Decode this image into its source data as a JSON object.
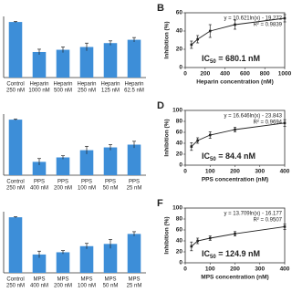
{
  "chart_data": [
    {
      "type": "bar",
      "color": "#3d8ed8",
      "ylim": [
        0,
        110
      ],
      "categories": [
        [
          "Control",
          "250 nM"
        ],
        [
          "Heparin",
          "1000 nM"
        ],
        [
          "Heparin",
          "500 nM"
        ],
        [
          "Heparin",
          "250 nM"
        ],
        [
          "Heparin",
          "125 nM"
        ],
        [
          "Heparin",
          "62.5 nM"
        ]
      ],
      "values": [
        100,
        46,
        50,
        55,
        62,
        68
      ],
      "errors": [
        1,
        5,
        5,
        7,
        4,
        4
      ]
    },
    {
      "type": "scatter",
      "panel_label": "B",
      "xlabel": "Heparin concentration (nM)",
      "ylabel": "Inhibition (%)",
      "x": [
        62.5,
        125,
        250,
        500,
        1000
      ],
      "values": [
        25,
        31,
        40,
        47,
        54
      ],
      "errors": [
        4,
        4,
        7,
        5,
        4
      ],
      "xlim": [
        0,
        1000
      ],
      "ylim": [
        0,
        60
      ],
      "xticks": [
        0,
        200,
        400,
        600,
        800,
        1000
      ],
      "yticks": [
        0,
        20,
        40,
        60
      ],
      "equation": "y = 10.621ln(x) - 19.272",
      "r_squared": "R² = 0.9839",
      "ic50": [
        "IC",
        "50",
        " = 680.1 nM"
      ]
    },
    {
      "type": "bar",
      "color": "#3d8ed8",
      "ylim": [
        0,
        110
      ],
      "categories": [
        [
          "Control",
          "250 nM"
        ],
        [
          "PPS",
          "400 nM"
        ],
        [
          "PPS",
          "200 nM"
        ],
        [
          "PPS",
          "100 nM"
        ],
        [
          "PPS",
          "50 nM"
        ],
        [
          "PPS",
          "25 nM"
        ]
      ],
      "values": [
        100,
        24,
        32,
        45,
        50,
        55
      ],
      "errors": [
        1,
        6,
        3,
        7,
        5,
        6
      ]
    },
    {
      "type": "scatter",
      "panel_label": "D",
      "xlabel": "PPS concentration (nM)",
      "ylabel": "Inhibition (%)",
      "x": [
        25,
        50,
        100,
        200,
        400
      ],
      "values": [
        34,
        45,
        55,
        65,
        77
      ],
      "errors": [
        7,
        5,
        6,
        4,
        6
      ],
      "xlim": [
        0,
        400
      ],
      "ylim": [
        0,
        100
      ],
      "xticks": [
        0,
        100,
        200,
        300,
        400
      ],
      "yticks": [
        0,
        20,
        40,
        60,
        80,
        100
      ],
      "equation": "y = 16.646ln(x) - 23.843",
      "r_squared": "R² = 0.9694",
      "ic50": [
        "IC",
        "50",
        " = 84.4 nM"
      ]
    },
    {
      "type": "bar",
      "color": "#3d8ed8",
      "ylim": [
        0,
        110
      ],
      "categories": [
        [
          "Control",
          "250 nM"
        ],
        [
          "MPS",
          "400 nM"
        ],
        [
          "MPS",
          "200 nM"
        ],
        [
          "MPS",
          "100 nM"
        ],
        [
          "MPS",
          "50 nM"
        ],
        [
          "MPS",
          "25 nM"
        ]
      ],
      "values": [
        100,
        33,
        37,
        48,
        52,
        70
      ],
      "errors": [
        1,
        6,
        3,
        5,
        8,
        4
      ],
      "ylim_note_unused": null
    },
    {
      "type": "scatter",
      "panel_label": "F",
      "xlabel": "MPS concentration (nM)",
      "ylabel": "Inhibition (%)",
      "x": [
        25,
        50,
        100,
        200,
        400
      ],
      "values": [
        30,
        40,
        45,
        53,
        66
      ],
      "errors": [
        8,
        5,
        4,
        4,
        5
      ],
      "xlim": [
        0,
        400
      ],
      "ylim": [
        0,
        100
      ],
      "xticks": [
        0,
        100,
        200,
        300,
        400
      ],
      "yticks": [
        0,
        20,
        40,
        60,
        80,
        100
      ],
      "equation": "y = 13.709ln(x) - 16.177",
      "r_squared": "R² = 0.9507",
      "ic50": [
        "IC",
        "50",
        " = 124.9 nM"
      ]
    }
  ]
}
